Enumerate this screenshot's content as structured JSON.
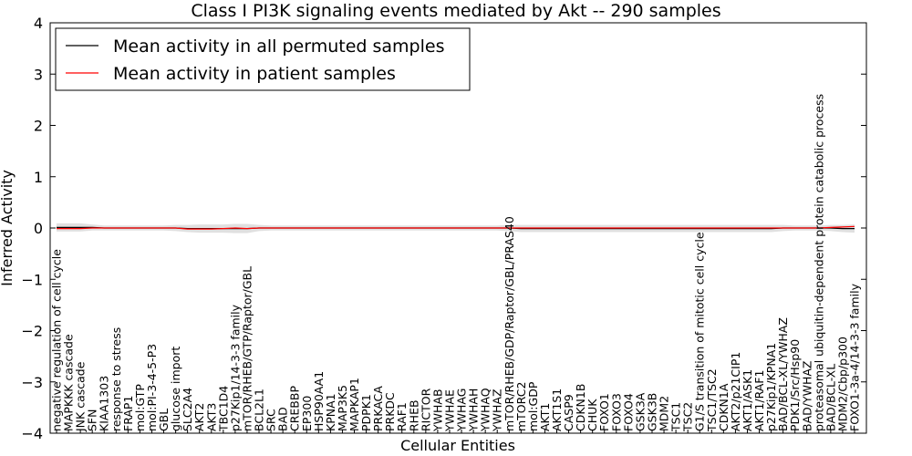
{
  "chart_data": {
    "type": "line",
    "title": "Class I PI3K signaling events mediated by Akt -- 290 samples",
    "xlabel": "Cellular Entities",
    "ylabel": "Inferred Activity",
    "ylim": [
      -4,
      4
    ],
    "yticks": [
      -4,
      -3,
      -2,
      -1,
      0,
      1,
      2,
      3,
      4
    ],
    "grid": false,
    "legend_position": "top-left",
    "categories": [
      "negative regulation of cell cycle",
      "MAPKKK cascade",
      "JNK cascade",
      "SFN",
      "KIAA1303",
      "response to stress",
      "FRAP1",
      "mol:GTP",
      "mol:PI-3-4-5-P3",
      "GBL",
      "glucose import",
      "SLC2A4",
      "AKT2",
      "AKT3",
      "TBC1D4",
      "p27Kip1/14-3-3 family",
      "mTOR/RHEB/GTP/Raptor/GBL",
      "BCL2L1",
      "SRC",
      "BAD",
      "CREBBP",
      "EP300",
      "HSP90AA1",
      "KPNA1",
      "MAP3K5",
      "MAPKAP1",
      "PDPK1",
      "PRKACA",
      "PRKDC",
      "RAF1",
      "RHEB",
      "RICTOR",
      "YWHAB",
      "YWHAE",
      "YWHAG",
      "YWHAH",
      "YWHAQ",
      "YWHAZ",
      "mTOR/RHEB/GDP/Raptor/GBL/PRAS40",
      "mTORC2",
      "mol:GDP",
      "AKT1",
      "AKT1S1",
      "CASP9",
      "CDKN1B",
      "CHUK",
      "FOXO1",
      "FOXO3",
      "FOXO4",
      "GSK3A",
      "GSK3B",
      "MDM2",
      "TSC1",
      "TSC2",
      "G1/S transition of mitotic cell cycle",
      "TSC1/TSC2",
      "CDKN1A",
      "AKT2/p21CIP1",
      "AKT1/ASK1",
      "AKT1/RAF1",
      "p27Kip1/KPNA1",
      "BAD/BCL-XL/YWHAZ",
      "PDK1/Src/Hsp90",
      "BAD/YWHAZ",
      "proteasomal ubiquitin-dependent protein catabolic process",
      "BAD/BCL-XL",
      "MDM2/Cbp/p300",
      "FOXO1-3a-4/14-3-3 family"
    ],
    "series": [
      {
        "name": "Mean activity in all permuted samples",
        "color": "#000000",
        "values": [
          0.01,
          0.01,
          0.01,
          0.01,
          0.0,
          0.0,
          0.0,
          0.0,
          0.0,
          0.0,
          0.0,
          -0.01,
          -0.01,
          -0.01,
          -0.01,
          -0.01,
          -0.01,
          0.0,
          0.0,
          0.0,
          0.0,
          0.0,
          0.0,
          0.0,
          0.0,
          0.0,
          0.0,
          0.0,
          0.0,
          0.0,
          0.0,
          0.0,
          0.0,
          0.0,
          0.0,
          0.0,
          0.0,
          0.0,
          0.0,
          -0.01,
          -0.01,
          -0.01,
          -0.01,
          -0.01,
          -0.01,
          -0.01,
          -0.01,
          -0.01,
          -0.01,
          -0.01,
          -0.01,
          -0.01,
          -0.01,
          -0.01,
          -0.01,
          -0.01,
          -0.01,
          -0.01,
          -0.01,
          -0.01,
          -0.01,
          0.0,
          0.0,
          0.0,
          0.0,
          0.0,
          -0.01,
          -0.01
        ],
        "band": [
          0.08,
          0.08,
          0.08,
          0.06,
          0.05,
          0.05,
          0.05,
          0.05,
          0.05,
          0.05,
          0.06,
          0.07,
          0.08,
          0.08,
          0.08,
          0.09,
          0.09,
          0.06,
          0.05,
          0.05,
          0.05,
          0.05,
          0.05,
          0.05,
          0.05,
          0.05,
          0.05,
          0.05,
          0.05,
          0.05,
          0.05,
          0.05,
          0.05,
          0.05,
          0.05,
          0.05,
          0.05,
          0.05,
          0.06,
          0.07,
          0.07,
          0.07,
          0.07,
          0.07,
          0.07,
          0.07,
          0.07,
          0.07,
          0.07,
          0.07,
          0.07,
          0.07,
          0.07,
          0.07,
          0.07,
          0.07,
          0.07,
          0.07,
          0.07,
          0.07,
          0.07,
          0.06,
          0.05,
          0.05,
          0.05,
          0.06,
          0.07,
          0.08
        ]
      },
      {
        "name": "Mean activity in patient samples",
        "color": "#ff0000",
        "values": [
          -0.01,
          -0.01,
          -0.01,
          0.0,
          0.0,
          0.0,
          0.0,
          0.0,
          0.0,
          0.0,
          0.0,
          -0.02,
          -0.02,
          -0.02,
          -0.01,
          0.0,
          -0.01,
          0.0,
          0.0,
          0.0,
          0.0,
          0.0,
          0.0,
          0.0,
          0.0,
          0.0,
          0.0,
          0.0,
          0.0,
          0.0,
          0.0,
          0.0,
          0.0,
          0.0,
          0.0,
          0.0,
          0.0,
          0.0,
          0.0,
          0.0,
          0.0,
          0.0,
          0.0,
          0.0,
          0.0,
          0.0,
          0.0,
          0.0,
          0.0,
          0.0,
          0.0,
          0.0,
          0.0,
          0.0,
          0.0,
          0.0,
          0.0,
          0.0,
          0.0,
          0.0,
          0.0,
          0.0,
          0.0,
          0.0,
          0.0,
          0.01,
          0.02,
          0.03
        ]
      }
    ]
  }
}
